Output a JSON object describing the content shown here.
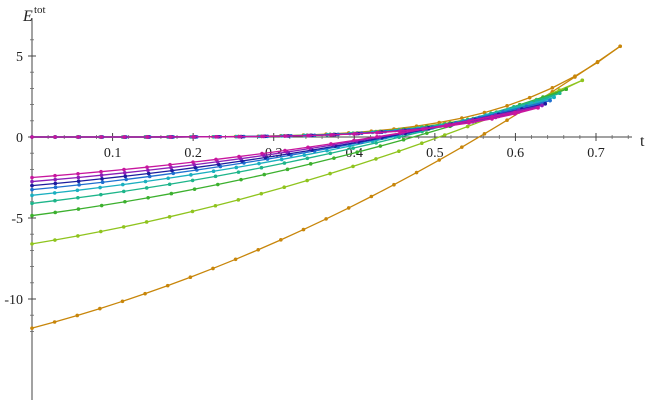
{
  "chart_data": {
    "type": "line",
    "title": "",
    "xlabel": "t",
    "ylabel": "E",
    "ylabel_sup": "tot",
    "xlim": [
      0.0,
      0.76
    ],
    "ylim": [
      -12.2,
      7.0
    ],
    "grid": false,
    "legend": "none",
    "x_ticks": [
      0.1,
      0.2,
      0.3,
      0.4,
      0.5,
      0.6,
      0.7
    ],
    "x_tick_labels": [
      "0.1",
      "0.2",
      "0.3",
      "0.4",
      "0.5",
      "0.6",
      "0.7"
    ],
    "y_ticks": [
      5,
      0,
      -5,
      -10
    ],
    "y_tick_labels": [
      "5",
      "0",
      "-5",
      "-10"
    ],
    "series": [
      {
        "color": "#C8860A",
        "t_end": 0.73,
        "y_end": 5.6,
        "lower_start": -11.8,
        "n": 26
      },
      {
        "color": "#8FC41E",
        "t_end": 0.683,
        "y_end": 3.5,
        "lower_start": -6.6,
        "n": 24
      },
      {
        "color": "#3CB02E",
        "t_end": 0.663,
        "y_end": 2.95,
        "lower_start": -4.85,
        "n": 23
      },
      {
        "color": "#1DB58A",
        "t_end": 0.655,
        "y_end": 2.7,
        "lower_start": -4.1,
        "n": 23
      },
      {
        "color": "#1AAFC0",
        "t_end": 0.648,
        "y_end": 2.45,
        "lower_start": -3.6,
        "n": 23
      },
      {
        "color": "#1F6FD0",
        "t_end": 0.643,
        "y_end": 2.25,
        "lower_start": -3.25,
        "n": 22
      },
      {
        "color": "#1C1C9E",
        "t_end": 0.637,
        "y_end": 2.05,
        "lower_start": -3.0,
        "n": 22
      },
      {
        "color": "#8B1FB8",
        "t_end": 0.633,
        "y_end": 1.95,
        "lower_start": -2.75,
        "n": 22
      },
      {
        "color": "#C8169E",
        "t_end": 0.628,
        "y_end": 1.8,
        "lower_start": -2.5,
        "n": 22
      }
    ]
  }
}
